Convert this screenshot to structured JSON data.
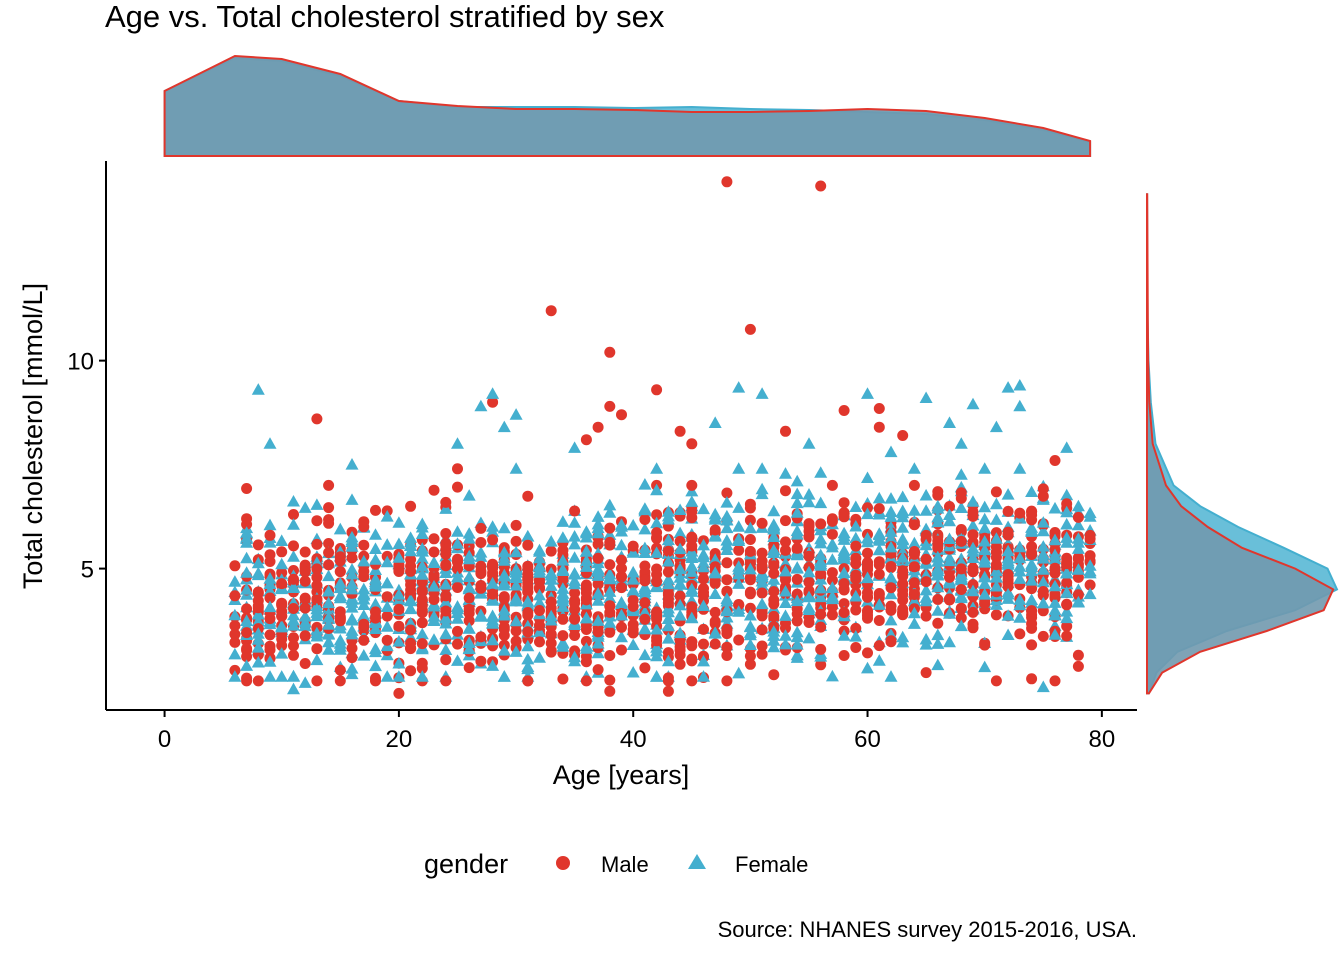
{
  "colors": {
    "male": "#E0362C",
    "female": "#44AFCF",
    "density_fill": "#7199AE",
    "axis": "#000000",
    "text": "#000000"
  },
  "chart_data": {
    "type": "scatter",
    "title": "Age vs. Total cholesterol stratified by sex",
    "xlabel": "Age [years]",
    "ylabel": "Total cholesterol [mmol/L]",
    "caption": "Source: NHANES survey 2015-2016, USA.",
    "xlim": [
      -5,
      83
    ],
    "ylim": [
      1.6,
      14.8
    ],
    "x_ticks": [
      0,
      20,
      40,
      60,
      80
    ],
    "y_ticks": [
      5,
      10
    ],
    "grid": false,
    "legend": {
      "title": "gender",
      "position": "bottom",
      "entries": [
        {
          "label": "Male",
          "marker": "circle"
        },
        {
          "label": "Female",
          "marker": "triangle"
        }
      ]
    },
    "marginal_x_density": {
      "x": [
        0,
        6,
        10,
        15,
        20,
        25,
        30,
        35,
        40,
        45,
        50,
        55,
        60,
        65,
        70,
        75,
        79
      ],
      "male": [
        0.65,
        1.0,
        0.97,
        0.82,
        0.55,
        0.5,
        0.47,
        0.47,
        0.46,
        0.44,
        0.44,
        0.45,
        0.47,
        0.45,
        0.38,
        0.28,
        0.15
      ],
      "female": [
        0.65,
        0.98,
        0.95,
        0.8,
        0.55,
        0.49,
        0.49,
        0.49,
        0.48,
        0.49,
        0.47,
        0.46,
        0.44,
        0.42,
        0.36,
        0.26,
        0.14
      ]
    },
    "marginal_y_density": {
      "y": [
        2.0,
        2.5,
        3.0,
        3.5,
        4.0,
        4.5,
        5.0,
        5.5,
        6.0,
        6.5,
        7.0,
        8.0,
        9.0,
        10.0,
        11.0,
        13.0,
        14.0
      ],
      "male": [
        0.01,
        0.08,
        0.28,
        0.63,
        0.93,
        0.98,
        0.78,
        0.5,
        0.32,
        0.18,
        0.1,
        0.03,
        0.012,
        0.006,
        0.004,
        0.002,
        0.001
      ],
      "female": [
        0.01,
        0.05,
        0.16,
        0.42,
        0.78,
        1.0,
        0.95,
        0.72,
        0.48,
        0.28,
        0.14,
        0.045,
        0.02,
        0.008,
        0.003,
        0.001,
        0.0005
      ]
    },
    "series": [
      {
        "name": "Male",
        "marker": "circle",
        "bulk": {
          "count": 1150,
          "x_range": [
            6,
            79
          ],
          "y_center": 4.5,
          "y_sd": 0.95,
          "y_trend_per_year": 0.012,
          "y_min": 2.3,
          "y_max": 7.0
        },
        "points": [
          {
            "x": 48,
            "y": 14.3
          },
          {
            "x": 56,
            "y": 14.2
          },
          {
            "x": 33,
            "y": 11.2
          },
          {
            "x": 50,
            "y": 10.75
          },
          {
            "x": 38,
            "y": 10.2
          },
          {
            "x": 42,
            "y": 9.3
          },
          {
            "x": 28,
            "y": 9.0
          },
          {
            "x": 13,
            "y": 8.6
          },
          {
            "x": 38,
            "y": 8.9
          },
          {
            "x": 39,
            "y": 8.7
          },
          {
            "x": 58,
            "y": 8.8
          },
          {
            "x": 61,
            "y": 8.85
          },
          {
            "x": 61,
            "y": 8.4
          },
          {
            "x": 37,
            "y": 8.4
          },
          {
            "x": 36,
            "y": 8.1
          },
          {
            "x": 53,
            "y": 8.3
          },
          {
            "x": 45,
            "y": 8.0
          },
          {
            "x": 44,
            "y": 8.3
          },
          {
            "x": 63,
            "y": 8.2
          },
          {
            "x": 76,
            "y": 7.6
          },
          {
            "x": 20,
            "y": 2.0
          },
          {
            "x": 38,
            "y": 2.05
          },
          {
            "x": 43,
            "y": 2.05
          },
          {
            "x": 71,
            "y": 2.3
          },
          {
            "x": 74,
            "y": 2.35
          },
          {
            "x": 65,
            "y": 2.5
          },
          {
            "x": 7,
            "y": 6.2
          },
          {
            "x": 9,
            "y": 5.8
          },
          {
            "x": 18,
            "y": 6.4
          },
          {
            "x": 25,
            "y": 7.4
          }
        ]
      },
      {
        "name": "Female",
        "marker": "triangle",
        "bulk": {
          "count": 1200,
          "x_range": [
            6,
            79
          ],
          "y_center": 4.7,
          "y_sd": 1.0,
          "y_trend_per_year": 0.014,
          "y_min": 2.4,
          "y_max": 7.4
        },
        "points": [
          {
            "x": 8,
            "y": 9.3
          },
          {
            "x": 9,
            "y": 8.0
          },
          {
            "x": 28,
            "y": 9.2
          },
          {
            "x": 27,
            "y": 8.9
          },
          {
            "x": 30,
            "y": 8.7
          },
          {
            "x": 29,
            "y": 8.4
          },
          {
            "x": 25,
            "y": 8.0
          },
          {
            "x": 49,
            "y": 9.35
          },
          {
            "x": 51,
            "y": 9.2
          },
          {
            "x": 60,
            "y": 9.2
          },
          {
            "x": 65,
            "y": 9.1
          },
          {
            "x": 72,
            "y": 9.35
          },
          {
            "x": 73,
            "y": 9.4
          },
          {
            "x": 69,
            "y": 8.95
          },
          {
            "x": 73,
            "y": 8.9
          },
          {
            "x": 67,
            "y": 8.5
          },
          {
            "x": 71,
            "y": 8.4
          },
          {
            "x": 47,
            "y": 8.5
          },
          {
            "x": 35,
            "y": 7.9
          },
          {
            "x": 77,
            "y": 7.9
          },
          {
            "x": 16,
            "y": 7.5
          },
          {
            "x": 11,
            "y": 2.1
          },
          {
            "x": 12,
            "y": 2.25
          },
          {
            "x": 75,
            "y": 2.15
          },
          {
            "x": 6,
            "y": 2.4
          },
          {
            "x": 60,
            "y": 2.6
          },
          {
            "x": 40,
            "y": 2.5
          },
          {
            "x": 68,
            "y": 8.0
          },
          {
            "x": 62,
            "y": 7.8
          },
          {
            "x": 55,
            "y": 8.0
          }
        ]
      }
    ]
  }
}
